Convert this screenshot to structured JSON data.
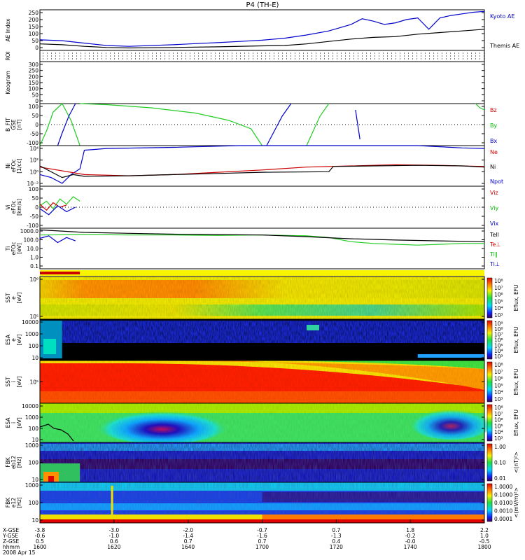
{
  "chart_data": {
    "type": "line",
    "title": "P4 (TH-E)",
    "date": "2008 Apr 15",
    "time_ticks": [
      "1600",
      "1620",
      "1640",
      "1700",
      "1720",
      "1740",
      "1800"
    ],
    "footer_rows": [
      {
        "label": "X-GSE",
        "values": [
          "-3.8",
          "-3.0",
          "-2.0",
          "-0.7",
          "0.7",
          "1.8",
          "2.2"
        ]
      },
      {
        "label": "Y-GSE",
        "values": [
          "-0.6",
          "-1.0",
          "-1.4",
          "-1.6",
          "-1.3",
          "-0.2",
          "1.0"
        ]
      },
      {
        "label": "Z-GSE",
        "values": [
          "0.5",
          "0.6",
          "0.7",
          "0.7",
          "0.4",
          "-0.0",
          "-0.5"
        ]
      },
      {
        "label": "hhmm",
        "values": [
          "1600",
          "1620",
          "1640",
          "1700",
          "1720",
          "1740",
          "1800"
        ]
      }
    ],
    "panels": [
      {
        "id": "ae",
        "ylabel": [
          "AE Index"
        ],
        "yticks": [
          "250",
          "200",
          "150",
          "100",
          "50",
          "0"
        ],
        "ylim": [
          0,
          250
        ],
        "legend": [
          {
            "text": "Kyoto AE",
            "color": "#0000cc"
          },
          {
            "text": "Themis AE",
            "color": "#000000"
          }
        ],
        "series": [
          {
            "name": "Kyoto AE",
            "color": "#0000cc",
            "x": [
              0,
              10,
              20,
              30,
              40,
              60,
              70,
              80,
              90,
              100,
              110,
              120,
              130,
              140,
              145,
              150,
              155,
              160,
              165,
              170,
              175,
              180,
              185,
              190,
              195,
              200
            ],
            "y": [
              65,
              60,
              45,
              30,
              25,
              35,
              42,
              48,
              55,
              63,
              75,
              95,
              120,
              160,
              195,
              180,
              160,
              170,
              190,
              200,
              130,
              200,
              215,
              225,
              235,
              240
            ]
          },
          {
            "name": "Themis AE",
            "color": "#000000",
            "x": [
              0,
              10,
              20,
              30,
              40,
              60,
              80,
              100,
              110,
              120,
              130,
              140,
              150,
              160,
              170,
              180,
              190,
              200
            ],
            "y": [
              40,
              35,
              25,
              18,
              15,
              18,
              22,
              28,
              30,
              40,
              55,
              70,
              80,
              85,
              100,
              110,
              120,
              130
            ]
          }
        ]
      },
      {
        "id": "roi",
        "ylabel": [
          "ROI"
        ],
        "yticks": [],
        "legend": []
      },
      {
        "id": "keogram",
        "ylabel": [
          "Keogram"
        ],
        "yticks": [
          "300",
          "250",
          "200",
          "150",
          "100",
          "50",
          "0"
        ],
        "ylim": [
          0,
          300
        ],
        "legend": []
      },
      {
        "id": "bfit",
        "ylabel": [
          "B_FIT",
          "GSE",
          "[nT]"
        ],
        "yticks": [
          "100",
          "50",
          "0",
          "-50",
          "-100"
        ],
        "ylim": [
          -100,
          100
        ],
        "legend": [
          {
            "text": "Bz",
            "color": "#cc0000"
          },
          {
            "text": "By",
            "color": "#00bb00"
          },
          {
            "text": "Bx",
            "color": "#0000cc"
          }
        ],
        "series": [
          {
            "name": "By",
            "color": "#22cc22",
            "x": [
              0,
              3,
              6,
              10,
              14,
              18
            ],
            "y": [
              -100,
              -30,
              60,
              100,
              20,
              -100
            ]
          },
          {
            "name": "By",
            "color": "#22cc22",
            "x": [
              18,
              30,
              50,
              70,
              85,
              95,
              100
            ],
            "y": [
              100,
              95,
              80,
              55,
              20,
              -20,
              -100
            ]
          },
          {
            "name": "By",
            "color": "#22cc22",
            "x": [
              120,
              123,
              126,
              130
            ],
            "y": [
              -100,
              -30,
              40,
              100
            ]
          },
          {
            "name": "By",
            "color": "#22cc22",
            "x": [
              196,
              198,
              200
            ],
            "y": [
              100,
              80,
              70
            ]
          },
          {
            "name": "Bx",
            "color": "#0000cc",
            "x": [
              8,
              10,
              13,
              16
            ],
            "y": [
              -100,
              -40,
              40,
              100
            ]
          },
          {
            "name": "Bx",
            "color": "#0000cc",
            "x": [
              102,
              105,
              109,
              113
            ],
            "y": [
              -100,
              -40,
              40,
              100
            ]
          },
          {
            "name": "Bx",
            "color": "#0000cc",
            "x": [
              142,
              143,
              144
            ],
            "y": [
              70,
              0,
              -70
            ]
          }
        ]
      },
      {
        "id": "ni",
        "ylabel": [
          "Ni",
          "eFOc",
          "[1/cc]"
        ],
        "yticks": [
          "10⁴",
          "10²",
          "10⁰",
          "10⁻²"
        ],
        "ylim": [
          -3,
          4
        ],
        "legend": [
          {
            "text": "Ne",
            "color": "#cc0000"
          },
          {
            "text": "Ni",
            "color": "#000000"
          },
          {
            "text": "Npot",
            "color": "#0000cc"
          }
        ],
        "series": [
          {
            "name": "Npot",
            "color": "#0000cc",
            "x": [
              0,
              5,
              10,
              14,
              18,
              20,
              30,
              60,
              90,
              110,
              130,
              150,
              170,
              190,
              200
            ],
            "y": [
              -1,
              -1.5,
              -2.5,
              -1,
              0,
              3.2,
              3.5,
              3.7,
              4,
              4.3,
              4.3,
              4.4,
              4.1,
              3.6,
              3.5
            ]
          },
          {
            "name": "Ne",
            "color": "#cc0000",
            "x": [
              0,
              20,
              40,
              60,
              80,
              100,
              120,
              140,
              160,
              180,
              200
            ],
            "y": [
              0.3,
              -1,
              -1.2,
              -1,
              -0.6,
              -0.2,
              0.3,
              0.5,
              0.7,
              0.6,
              0.4
            ]
          },
          {
            "name": "Ni",
            "color": "#000000",
            "x": [
              0,
              10,
              15,
              20,
              40,
              60,
              80,
              100,
              130,
              132,
              150,
              170,
              190,
              200
            ],
            "y": [
              0.5,
              -1.5,
              -1,
              -1.3,
              -1.2,
              -1,
              -0.8,
              -0.6,
              -0.5,
              0.4,
              0.5,
              0.6,
              0.5,
              0.3
            ]
          }
        ]
      },
      {
        "id": "vi",
        "ylabel": [
          "Vi",
          "eFOc",
          "[km/s]"
        ],
        "yticks": [
          "100",
          "50",
          "0",
          "-50",
          "-100"
        ],
        "ylim": [
          -150,
          130
        ],
        "legend": [
          {
            "text": "Viz",
            "color": "#cc0000"
          },
          {
            "text": "Viy",
            "color": "#00bb00"
          },
          {
            "text": "Vix",
            "color": "#0000cc"
          }
        ],
        "series": [
          {
            "name": "Viy",
            "color": "#22cc22",
            "x": [
              0,
              3,
              6,
              9,
              12,
              15,
              18
            ],
            "y": [
              0,
              30,
              -20,
              45,
              10,
              60,
              30
            ]
          },
          {
            "name": "Viz",
            "color": "#cc0000",
            "x": [
              0,
              3,
              6,
              9,
              12
            ],
            "y": [
              10,
              -30,
              20,
              -10,
              5
            ]
          },
          {
            "name": "Vix",
            "color": "#0000cc",
            "x": [
              0,
              4,
              8,
              12,
              16
            ],
            "y": [
              -20,
              -60,
              0,
              -40,
              -10
            ]
          }
        ]
      },
      {
        "id": "ti",
        "ylabel": [
          "Ti",
          "eFOc",
          "[eV]"
        ],
        "yticks": [
          "1000.0",
          "100.0",
          "10.0",
          "1.0",
          "0.1"
        ],
        "ylim": [
          -1.3,
          3.5
        ],
        "legend": [
          {
            "text": "Tell",
            "color": "#000000"
          },
          {
            "text": "Te⊥",
            "color": "#cc0000"
          },
          {
            "text": "Ti∥",
            "color": "#00bb00"
          },
          {
            "text": "Ti⊥",
            "color": "#0000cc"
          }
        ],
        "series": [
          {
            "name": "Ti∥",
            "color": "#22cc22",
            "x": [
              0,
              20,
              40,
              60,
              80,
              100,
              120,
              130,
              140,
              150,
              160,
              170,
              180,
              190,
              200
            ],
            "y": [
              2.7,
              2.75,
              2.7,
              2.7,
              2.65,
              2.7,
              2.6,
              2.4,
              1.9,
              1.7,
              1.6,
              1.5,
              1.6,
              1.7,
              1.7
            ]
          },
          {
            "name": "Tell",
            "color": "#000000",
            "x": [
              0,
              20,
              40,
              60,
              80,
              100,
              120,
              140,
              160,
              180,
              200
            ],
            "y": [
              3.3,
              3.0,
              2.9,
              2.8,
              2.75,
              2.7,
              2.5,
              2.25,
              2.1,
              2.0,
              1.9
            ]
          },
          {
            "name": "Ti⊥",
            "color": "#0000cc",
            "x": [
              0,
              4,
              8,
              12,
              16
            ],
            "y": [
              2.3,
              2.6,
              1.8,
              2.4,
              2.0
            ]
          }
        ]
      },
      {
        "id": "sst_e",
        "ylabel": [
          "SST",
          "e",
          "[eV]"
        ],
        "yticks": [
          "10⁶",
          "10⁵"
        ],
        "cblabel": "Eflux, EFU",
        "cbticks": [
          "10⁸",
          "10⁷",
          "10⁶",
          "10⁵",
          "10⁴",
          "10³"
        ]
      },
      {
        "id": "esa_e",
        "ylabel": [
          "ESA",
          "e",
          "[eV]"
        ],
        "yticks": [
          "10000",
          "1000",
          "100",
          "10"
        ],
        "cblabel": "Eflux, EFU",
        "cbticks": [
          "10⁹",
          "10⁸",
          "10⁷",
          "10⁶",
          "10⁵",
          "10⁴",
          "10³"
        ]
      },
      {
        "id": "sst_i",
        "ylabel": [
          "SST",
          "i",
          "[eV]"
        ],
        "yticks": [
          "10⁵"
        ],
        "cblabel": "Eflux, EFU",
        "cbticks": [
          "10⁸",
          "10⁷",
          "10⁶",
          "10⁵",
          "10⁴",
          "10³"
        ]
      },
      {
        "id": "esa_i",
        "ylabel": [
          "ESA",
          "i",
          "[eV]"
        ],
        "yticks": [
          "10000",
          "1000",
          "100",
          "10"
        ],
        "cblabel": "Eflux, EFU",
        "cbticks": [
          "10⁸",
          "10⁷",
          "10⁶",
          "10⁵",
          "10⁴",
          "10³"
        ]
      },
      {
        "id": "fbk1",
        "ylabel": [
          "FBK",
          "eb12",
          "[Hz]"
        ],
        "yticks": [
          "1000",
          "100",
          "10"
        ],
        "cblabel": "<(nT)²>",
        "cbticks": [
          "1.00",
          "0.10",
          "0.01"
        ]
      },
      {
        "id": "fbk2",
        "ylabel": [
          "FBK",
          "e12",
          "[Hz]"
        ],
        "yticks": [
          "1000",
          "100",
          "10"
        ],
        "cblabel": "<(mV/m)²>",
        "cbticks": [
          "1.0000",
          "0.1000",
          "0.0100",
          "0.0010",
          "0.0001"
        ]
      }
    ]
  }
}
